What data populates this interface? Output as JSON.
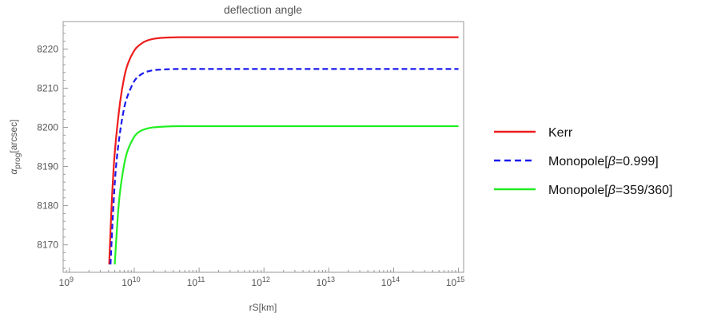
{
  "chart_data": {
    "type": "line",
    "title": "deflection angle",
    "xlabel": "rS[km]",
    "ylabel": {
      "prefix": "α",
      "sub": "prog",
      "suffix": "[arcsec]"
    },
    "xscale": "log",
    "xlim": [
      800000000,
      1200000000000000
    ],
    "ylim": [
      8163,
      8227
    ],
    "xticks": [
      {
        "value": 1000000000,
        "base": "10",
        "exp": "9"
      },
      {
        "value": 10000000000,
        "base": "10",
        "exp": "10"
      },
      {
        "value": 100000000000,
        "base": "10",
        "exp": "11"
      },
      {
        "value": 1000000000000,
        "base": "10",
        "exp": "12"
      },
      {
        "value": 10000000000000,
        "base": "10",
        "exp": "13"
      },
      {
        "value": 100000000000000,
        "base": "10",
        "exp": "14"
      },
      {
        "value": 1000000000000000,
        "base": "10",
        "exp": "15"
      }
    ],
    "yticks": [
      8170,
      8180,
      8190,
      8200,
      8210,
      8220
    ],
    "grid": false,
    "legend": "right",
    "series": [
      {
        "name": "Kerr",
        "legend_parts": [
          "Kerr"
        ],
        "color": "#ee1c1c",
        "dash": "solid",
        "x": [
          4100000000,
          4500000000,
          5000000000,
          6000000000,
          7000000000,
          8000000000,
          10000000000,
          12000000000,
          15000000000,
          20000000000,
          30000000000,
          50000000000,
          100000000000,
          1000000000000,
          1000000000000000
        ],
        "y": [
          8165,
          8181,
          8193.5,
          8206,
          8212.8,
          8216.3,
          8219.6,
          8221,
          8222,
          8222.6,
          8222.9,
          8223,
          8223,
          8223,
          8223
        ]
      },
      {
        "name": "Monopole[β=0.999]",
        "legend_parts": [
          "Monopole[",
          "β",
          "=0.999]"
        ],
        "color": "#1a1aee",
        "dash": "dashed",
        "x": [
          4300000000,
          4700000000,
          5200000000,
          6000000000,
          7000000000,
          8000000000,
          10000000000,
          12000000000,
          15000000000,
          20000000000,
          30000000000,
          50000000000,
          100000000000,
          1000000000000,
          1000000000000000
        ],
        "y": [
          8165,
          8178,
          8189.5,
          8198.5,
          8205,
          8208.3,
          8211.8,
          8213.2,
          8214.1,
          8214.6,
          8214.8,
          8214.9,
          8214.9,
          8214.9,
          8214.9
        ]
      },
      {
        "name": "Monopole[β=359/360]",
        "legend_parts": [
          "Monopole[",
          "β",
          "=359/360]"
        ],
        "color": "#22ee22",
        "dash": "solid",
        "x": [
          5000000000,
          5500000000,
          6000000000,
          7000000000,
          8000000000,
          10000000000,
          12000000000,
          15000000000,
          20000000000,
          30000000000,
          50000000000,
          100000000000,
          1000000000000,
          1000000000000000
        ],
        "y": [
          8165,
          8176,
          8183.2,
          8190.6,
          8194.3,
          8197.6,
          8198.9,
          8199.6,
          8200,
          8200.2,
          8200.3,
          8200.3,
          8200.3,
          8200.3
        ]
      }
    ]
  }
}
